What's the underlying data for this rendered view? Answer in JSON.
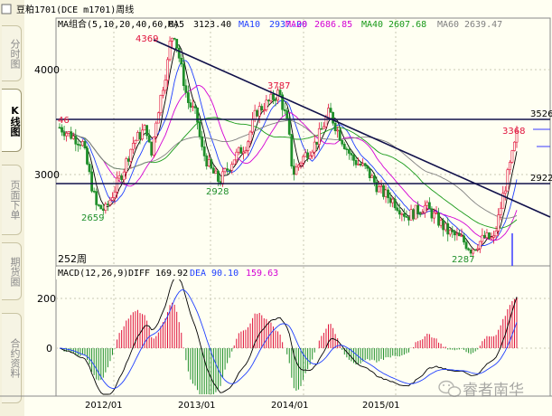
{
  "title_bar": {
    "icon": "document-icon",
    "text": "豆粕1701(DCE m1701)周线"
  },
  "sidebar": {
    "tabs": [
      {
        "label": "分时图",
        "active": false
      },
      {
        "label": "K线图",
        "active": true
      },
      {
        "label": "页面下单",
        "active": false
      },
      {
        "label": "期货圈",
        "active": false
      },
      {
        "label": "合约资料",
        "active": false
      }
    ]
  },
  "ma_legend": {
    "group": "MA组合(5,10,20,40,60,0)",
    "items": [
      {
        "label": "MA5",
        "value": "3123.40",
        "color": "#000000"
      },
      {
        "label": "MA10",
        "value": "2937.00",
        "color": "#1f3fff"
      },
      {
        "label": "MA20",
        "value": "2686.85",
        "color": "#d400d4"
      },
      {
        "label": "MA40",
        "value": "2607.68",
        "color": "#1a9a1a"
      },
      {
        "label": "MA60",
        "value": "2639.47",
        "color": "#808080"
      }
    ]
  },
  "price_axis": {
    "labels": [
      "4000",
      "3000"
    ]
  },
  "macd_axis": {
    "labels": [
      "200",
      "0"
    ]
  },
  "macd_legend": {
    "group": "MACD(12,26,9)",
    "diff_label": "DIFF",
    "diff_value": "169.92",
    "dea_label": "DEA",
    "dea_value": "90.10",
    "macd_value": "159.63"
  },
  "period_label": "252周",
  "annotations": {
    "high_1": "4369",
    "high_2": "3787",
    "high_3": "3368",
    "low_1": "2659",
    "low_2": "2928",
    "low_3": "2287",
    "level_upper": "3526",
    "level_lower": "2922",
    "left_cut": "46"
  },
  "time_axis": {
    "labels": [
      "2012/01",
      "2013/01",
      "2014/01",
      "2015/01"
    ]
  },
  "watermark": {
    "text": "睿者南华",
    "icon": "wechat-icon"
  },
  "colors": {
    "bull": "#e0103a",
    "bear": "#1f8f2a",
    "background": "#fffff2",
    "grid": "#c8c8b4"
  }
}
